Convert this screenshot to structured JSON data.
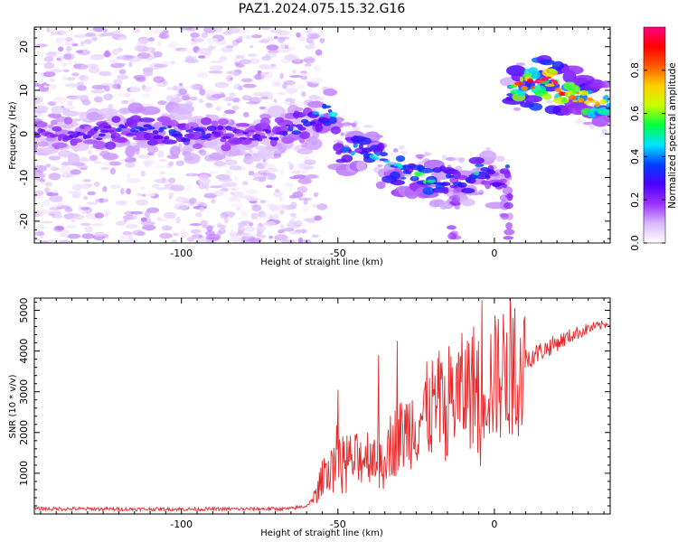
{
  "chart_data": [
    {
      "type": "heatmap",
      "title": "PAZ1.2024.075.15.32.G16",
      "xlabel": "Height of straight line (km)",
      "ylabel": "Frequency (Hz)",
      "xlim": [
        -147,
        37
      ],
      "ylim": [
        -25,
        24.5
      ],
      "x_ticks": [
        -100,
        -50,
        0
      ],
      "y_ticks": [
        -20,
        -10,
        0,
        10,
        20
      ],
      "colorbar": {
        "label": "Normalized spectral amplitude",
        "ticks": [
          0.0,
          0.2,
          0.4,
          0.6,
          0.8
        ],
        "ticks_text": [
          "0.0",
          "0.2",
          "0.4",
          "0.6",
          "0.8"
        ],
        "range": [
          0,
          1
        ],
        "colormap": [
          "#ffffff",
          "#d9b8ff",
          "#9b30ff",
          "#4b00ff",
          "#0040ff",
          "#00e5ff",
          "#00ff40",
          "#c8ff00",
          "#ffd000",
          "#ff5a00",
          "#ff0000",
          "#ff0080"
        ]
      },
      "ridge": {
        "x": [
          -145,
          -130,
          -115,
          -100,
          -85,
          -70,
          -60,
          -55,
          -52,
          -50,
          -45,
          -40,
          -33,
          -28,
          -22,
          -17,
          -12,
          -8,
          -5,
          -3,
          -1,
          0,
          2,
          4,
          5,
          6,
          8,
          10,
          15,
          20,
          25,
          30,
          35,
          37
        ],
        "freq": [
          0,
          0,
          1,
          0,
          0,
          0,
          2,
          5,
          5,
          -3,
          -3,
          -4,
          -8,
          -9,
          -10,
          -11,
          -11,
          -10,
          -8,
          -8,
          -10,
          -11,
          -11,
          -12,
          11,
          11,
          11,
          12,
          12,
          11,
          9,
          8,
          6,
          5
        ],
        "amplitude": [
          0.2,
          0.25,
          0.3,
          0.3,
          0.25,
          0.25,
          0.3,
          0.4,
          0.45,
          0.3,
          0.35,
          0.4,
          0.45,
          0.45,
          0.5,
          0.35,
          0.3,
          0.35,
          0.45,
          0.3,
          0.3,
          0.3,
          0.3,
          0.3,
          0.35,
          0.65,
          0.75,
          0.8,
          0.95,
          0.85,
          0.75,
          0.7,
          0.6,
          0.55
        ]
      }
    },
    {
      "type": "line",
      "xlabel": "Height of straight line (km)",
      "ylabel": "SNR (10 * v/v)",
      "xlim": [
        -147,
        37
      ],
      "ylim": [
        0,
        5300
      ],
      "x_ticks": [
        -100,
        -50,
        0
      ],
      "y_ticks": [
        1000,
        2000,
        3000,
        4000,
        5000
      ],
      "color": "#e8282a",
      "envelope": {
        "x": [
          -147,
          -120,
          -90,
          -65,
          -60,
          -57,
          -55,
          -53,
          -50,
          -45,
          -40,
          -35,
          -30,
          -25,
          -20,
          -15,
          -10,
          -5,
          -3,
          0,
          5,
          10,
          15,
          20,
          25,
          30,
          35,
          37
        ],
        "y": [
          130,
          120,
          120,
          130,
          200,
          450,
          900,
          1300,
          1500,
          1300,
          1500,
          1600,
          1900,
          2300,
          2600,
          2800,
          3000,
          3250,
          3300,
          3300,
          3600,
          3800,
          4000,
          4200,
          4400,
          4550,
          4650,
          4700
        ]
      },
      "peaks": [
        {
          "x": -50,
          "y": 3050
        },
        {
          "x": -37,
          "y": 3900
        },
        {
          "x": -31,
          "y": 4250
        },
        {
          "x": -17,
          "y": 3300
        },
        {
          "x": -8,
          "y": 3550
        },
        {
          "x": -4,
          "y": 5250
        },
        {
          "x": 4,
          "y": 4450
        }
      ]
    }
  ]
}
